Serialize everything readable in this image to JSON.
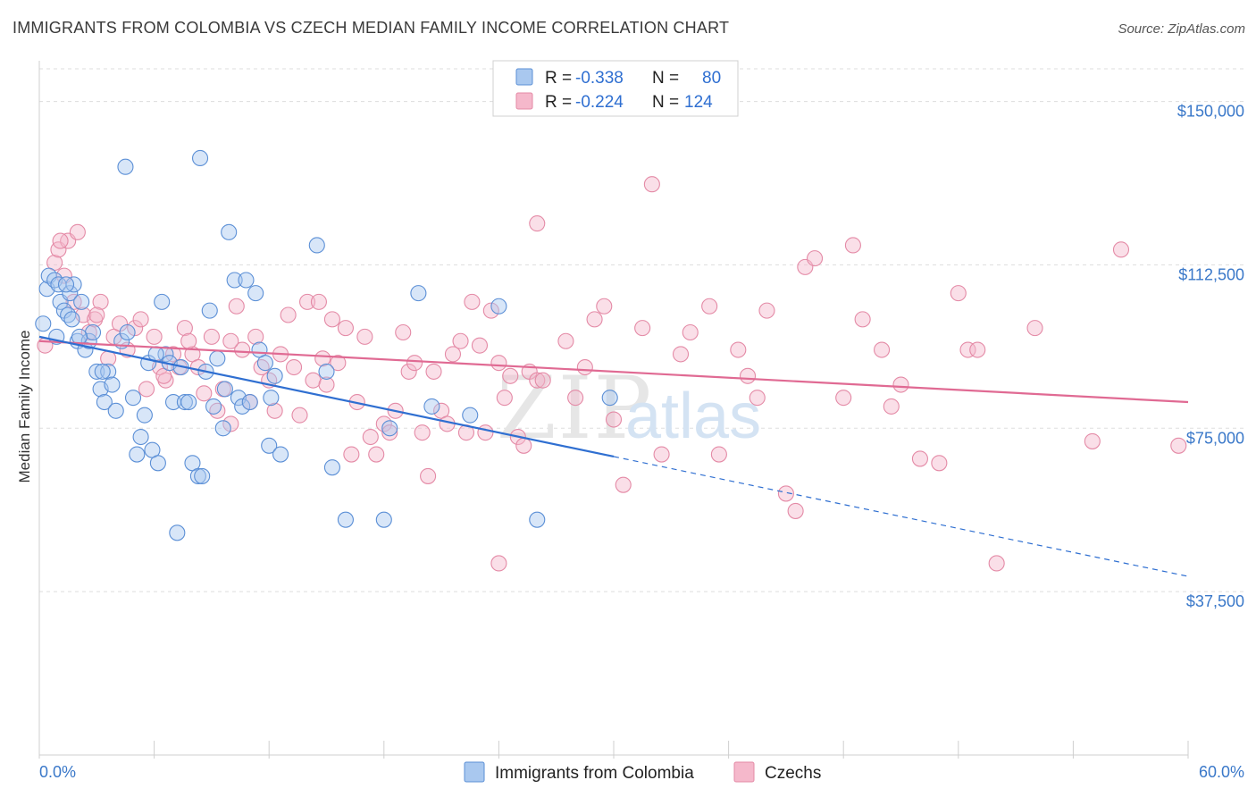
{
  "title": "IMMIGRANTS FROM COLOMBIA VS CZECH MEDIAN FAMILY INCOME CORRELATION CHART",
  "source": "Source: ZipAtlas.com",
  "watermark": {
    "zip": "ZIP",
    "atlas": "atlas"
  },
  "legend_top": [
    {
      "r_label": "R =",
      "r_value": "-0.338",
      "n_label": "N =",
      "n_value": "80"
    },
    {
      "r_label": "R =",
      "r_value": "-0.224",
      "n_label": "N =",
      "n_value": "124"
    }
  ],
  "legend_bottom": [
    "Immigrants from Colombia",
    "Czechs"
  ],
  "colors": {
    "blue_fill": "#a9c8ef",
    "blue_stroke": "#5b8fd6",
    "blue_line": "#2f6fd1",
    "pink_fill": "#f5b8cb",
    "pink_stroke": "#e48aa6",
    "pink_line": "#e06a93",
    "grid": "#dddddd",
    "accent_text": "#3a78c9"
  },
  "chart_data": {
    "type": "scatter",
    "xlabel": "",
    "ylabel": "Median Family Income",
    "xlim": [
      0,
      60
    ],
    "ylim": [
      0,
      157500
    ],
    "x_tick_labels": [
      "0.0%",
      "60.0%"
    ],
    "y_ticks": [
      37500,
      75000,
      112500,
      150000
    ],
    "y_tick_labels": [
      "$37,500",
      "$75,000",
      "$112,500",
      "$150,000"
    ],
    "grid": true,
    "legend_position": "top-center",
    "series": [
      {
        "name": "Immigrants from Colombia",
        "r": -0.338,
        "n": 80,
        "trend": {
          "x0": 0,
          "y0": 96000,
          "x1": 30,
          "y1": 68500,
          "dash_to_x": 60,
          "dash_to_y": 41000
        },
        "points": [
          [
            0.2,
            99000
          ],
          [
            0.4,
            107000
          ],
          [
            0.5,
            110000
          ],
          [
            0.8,
            109000
          ],
          [
            0.9,
            96000
          ],
          [
            1.0,
            108000
          ],
          [
            1.1,
            104000
          ],
          [
            1.3,
            102000
          ],
          [
            1.5,
            101000
          ],
          [
            1.6,
            106000
          ],
          [
            1.7,
            100000
          ],
          [
            1.8,
            108000
          ],
          [
            2.0,
            95000
          ],
          [
            2.2,
            104000
          ],
          [
            2.4,
            93000
          ],
          [
            2.6,
            95000
          ],
          [
            2.8,
            97000
          ],
          [
            3.0,
            88000
          ],
          [
            3.2,
            84000
          ],
          [
            3.4,
            81000
          ],
          [
            3.6,
            88000
          ],
          [
            3.8,
            85000
          ],
          [
            4.0,
            79000
          ],
          [
            4.3,
            95000
          ],
          [
            4.6,
            97000
          ],
          [
            4.9,
            82000
          ],
          [
            5.1,
            69000
          ],
          [
            5.3,
            73000
          ],
          [
            5.5,
            78000
          ],
          [
            5.7,
            90000
          ],
          [
            5.9,
            70000
          ],
          [
            6.2,
            67000
          ],
          [
            6.4,
            104000
          ],
          [
            6.6,
            92000
          ],
          [
            6.8,
            90000
          ],
          [
            7.0,
            81000
          ],
          [
            7.2,
            51000
          ],
          [
            7.4,
            89000
          ],
          [
            7.6,
            81000
          ],
          [
            7.8,
            81000
          ],
          [
            8.0,
            67000
          ],
          [
            8.3,
            64000
          ],
          [
            8.5,
            64000
          ],
          [
            8.7,
            88000
          ],
          [
            8.9,
            102000
          ],
          [
            9.1,
            80000
          ],
          [
            9.3,
            91000
          ],
          [
            9.6,
            75000
          ],
          [
            9.9,
            120000
          ],
          [
            10.2,
            109000
          ],
          [
            10.4,
            82000
          ],
          [
            10.6,
            80000
          ],
          [
            10.8,
            109000
          ],
          [
            11.0,
            81000
          ],
          [
            11.3,
            106000
          ],
          [
            11.5,
            93000
          ],
          [
            11.8,
            90000
          ],
          [
            12.0,
            71000
          ],
          [
            12.3,
            87000
          ],
          [
            12.6,
            69000
          ],
          [
            14.5,
            117000
          ],
          [
            15.0,
            88000
          ],
          [
            15.3,
            66000
          ],
          [
            16.0,
            54000
          ],
          [
            18.0,
            54000
          ],
          [
            18.3,
            75000
          ],
          [
            19.8,
            106000
          ],
          [
            20.5,
            80000
          ],
          [
            22.5,
            78000
          ],
          [
            24.0,
            103000
          ],
          [
            26.0,
            54000
          ],
          [
            29.8,
            82000
          ],
          [
            4.5,
            135000
          ],
          [
            8.4,
            137000
          ],
          [
            9.7,
            84000
          ],
          [
            3.3,
            88000
          ],
          [
            2.1,
            96000
          ],
          [
            6.1,
            92000
          ],
          [
            1.4,
            108000
          ],
          [
            12.1,
            82000
          ]
        ]
      },
      {
        "name": "Czechs",
        "r": -0.224,
        "n": 124,
        "trend": {
          "x0": 0,
          "y0": 95000,
          "x1": 60,
          "y1": 81000
        },
        "points": [
          [
            0.3,
            94000
          ],
          [
            0.8,
            113000
          ],
          [
            1.0,
            116000
          ],
          [
            1.3,
            110000
          ],
          [
            1.5,
            118000
          ],
          [
            1.8,
            104000
          ],
          [
            2.0,
            120000
          ],
          [
            2.3,
            101000
          ],
          [
            2.6,
            97000
          ],
          [
            2.9,
            100000
          ],
          [
            3.2,
            104000
          ],
          [
            3.6,
            91000
          ],
          [
            3.9,
            96000
          ],
          [
            4.2,
            99000
          ],
          [
            4.6,
            93000
          ],
          [
            5.0,
            98000
          ],
          [
            5.3,
            100000
          ],
          [
            5.6,
            84000
          ],
          [
            6.0,
            96000
          ],
          [
            6.3,
            89000
          ],
          [
            6.6,
            86000
          ],
          [
            7.0,
            92000
          ],
          [
            7.3,
            89000
          ],
          [
            7.6,
            98000
          ],
          [
            8.0,
            92000
          ],
          [
            8.3,
            89000
          ],
          [
            8.6,
            83000
          ],
          [
            9.0,
            96000
          ],
          [
            9.3,
            79000
          ],
          [
            9.6,
            84000
          ],
          [
            10.0,
            76000
          ],
          [
            10.3,
            103000
          ],
          [
            10.6,
            93000
          ],
          [
            11.0,
            81000
          ],
          [
            11.3,
            96000
          ],
          [
            11.6,
            89000
          ],
          [
            12.0,
            86000
          ],
          [
            12.3,
            79000
          ],
          [
            12.6,
            92000
          ],
          [
            13.0,
            101000
          ],
          [
            13.3,
            89000
          ],
          [
            13.6,
            78000
          ],
          [
            14.0,
            104000
          ],
          [
            14.3,
            86000
          ],
          [
            14.6,
            104000
          ],
          [
            15.0,
            85000
          ],
          [
            15.3,
            100000
          ],
          [
            15.6,
            90000
          ],
          [
            16.0,
            98000
          ],
          [
            16.3,
            69000
          ],
          [
            16.6,
            81000
          ],
          [
            17.0,
            96000
          ],
          [
            17.3,
            73000
          ],
          [
            17.6,
            69000
          ],
          [
            18.0,
            76000
          ],
          [
            18.3,
            74000
          ],
          [
            18.6,
            79000
          ],
          [
            19.0,
            97000
          ],
          [
            19.3,
            88000
          ],
          [
            19.6,
            90000
          ],
          [
            20.0,
            74000
          ],
          [
            20.3,
            64000
          ],
          [
            20.6,
            88000
          ],
          [
            21.0,
            79000
          ],
          [
            21.3,
            76000
          ],
          [
            21.6,
            92000
          ],
          [
            22.0,
            95000
          ],
          [
            22.3,
            74000
          ],
          [
            22.6,
            104000
          ],
          [
            23.0,
            94000
          ],
          [
            23.3,
            74000
          ],
          [
            23.6,
            102000
          ],
          [
            24.0,
            90000
          ],
          [
            24.3,
            82000
          ],
          [
            24.6,
            87000
          ],
          [
            25.0,
            73000
          ],
          [
            25.3,
            71000
          ],
          [
            25.6,
            88000
          ],
          [
            26.0,
            86000
          ],
          [
            26.3,
            86000
          ],
          [
            27.5,
            95000
          ],
          [
            28.0,
            82000
          ],
          [
            28.5,
            89000
          ],
          [
            29.0,
            100000
          ],
          [
            29.5,
            103000
          ],
          [
            30.0,
            77000
          ],
          [
            30.5,
            62000
          ],
          [
            31.5,
            98000
          ],
          [
            32.0,
            131000
          ],
          [
            32.5,
            69000
          ],
          [
            33.5,
            92000
          ],
          [
            34.0,
            97000
          ],
          [
            35.0,
            103000
          ],
          [
            35.5,
            69000
          ],
          [
            36.5,
            93000
          ],
          [
            37.0,
            87000
          ],
          [
            37.5,
            82000
          ],
          [
            38.0,
            102000
          ],
          [
            39.0,
            60000
          ],
          [
            39.5,
            56000
          ],
          [
            40.0,
            112000
          ],
          [
            40.5,
            114000
          ],
          [
            42.0,
            82000
          ],
          [
            42.5,
            117000
          ],
          [
            43.0,
            100000
          ],
          [
            44.0,
            93000
          ],
          [
            44.5,
            80000
          ],
          [
            45.0,
            85000
          ],
          [
            46.0,
            68000
          ],
          [
            47.0,
            67000
          ],
          [
            48.0,
            106000
          ],
          [
            48.5,
            93000
          ],
          [
            49.0,
            93000
          ],
          [
            50.0,
            44000
          ],
          [
            52.0,
            98000
          ],
          [
            55.0,
            72000
          ],
          [
            56.5,
            116000
          ],
          [
            59.5,
            71000
          ],
          [
            26.0,
            122000
          ],
          [
            24.0,
            44000
          ],
          [
            3.0,
            101000
          ],
          [
            6.5,
            87000
          ],
          [
            10.0,
            95000
          ],
          [
            14.8,
            91000
          ],
          [
            7.8,
            95000
          ],
          [
            1.1,
            118000
          ]
        ]
      }
    ]
  }
}
